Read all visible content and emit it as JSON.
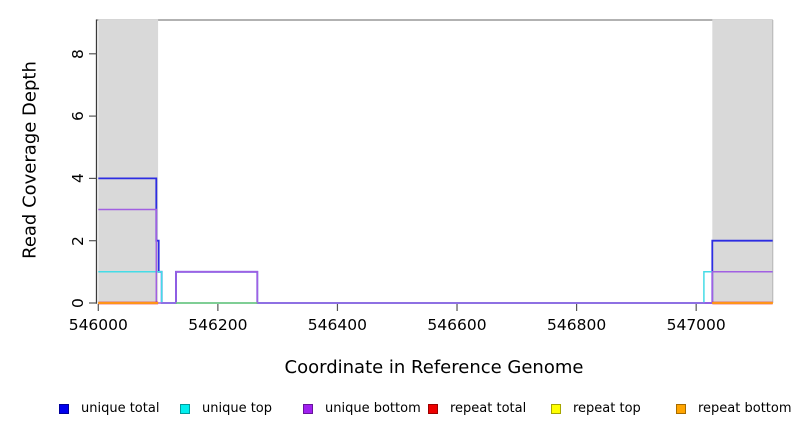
{
  "chart_data": {
    "type": "line",
    "subtype": "step-coverage",
    "title": "",
    "xlabel": "Coordinate in Reference Genome",
    "ylabel": "Read Coverage Depth",
    "xlim": [
      545997,
      547128
    ],
    "ylim": [
      0,
      9.085
    ],
    "x_ticks": [
      546000,
      546200,
      546400,
      546600,
      546800,
      547000
    ],
    "y_ticks": [
      0,
      2,
      4,
      6,
      8
    ],
    "grid": false,
    "region_fill": "#d9d9d9",
    "repeat_regions": [
      {
        "x0": 546000,
        "x1": 546100
      },
      {
        "x0": 547027,
        "x1": 547128
      }
    ],
    "series": [
      {
        "name": "unique total",
        "color": "#2d2de2",
        "width": 1.8,
        "steps": [
          [
            546000,
            4
          ],
          [
            546097,
            2
          ],
          [
            546101,
            1
          ],
          [
            546106,
            0
          ],
          [
            546130,
            1
          ],
          [
            546266,
            0
          ],
          [
            547027,
            2
          ]
        ]
      },
      {
        "name": "unique top",
        "color": "#45dce6",
        "width": 1.5,
        "steps": [
          [
            546000,
            1
          ],
          [
            546106,
            0
          ],
          [
            547013,
            1
          ]
        ]
      },
      {
        "name": "unique bottom",
        "color": "#a160e2",
        "width": 1.5,
        "steps": [
          [
            546000,
            3
          ],
          [
            546097,
            0
          ],
          [
            546130,
            1
          ],
          [
            546266,
            0
          ],
          [
            547027,
            1
          ]
        ]
      },
      {
        "name": "repeat total",
        "color": "#e01010",
        "width": 2.4,
        "regions": [
          [
            546000,
            546100,
            0
          ],
          [
            547027,
            547128,
            0
          ]
        ]
      },
      {
        "name": "repeat top",
        "color": "#ffe400",
        "width": 2.1,
        "regions": [
          [
            546000,
            546100,
            0
          ],
          [
            547027,
            547128,
            0
          ]
        ]
      },
      {
        "name": "repeat bottom",
        "color": "#ff9418",
        "width": 1.9,
        "regions": [
          [
            546000,
            546100,
            0
          ],
          [
            547027,
            547128,
            0
          ]
        ]
      }
    ],
    "baseline_overlap_segments": [
      {
        "x0": 546130,
        "x1": 546266,
        "y": 0,
        "color": "#74c476"
      }
    ],
    "legend": {
      "position": "bottom",
      "items": [
        {
          "label": "unique total",
          "color": "#0000ee"
        },
        {
          "label": "unique top",
          "color": "#00eeee"
        },
        {
          "label": "unique bottom",
          "color": "#a020f0"
        },
        {
          "label": "repeat total",
          "color": "#ee0000"
        },
        {
          "label": "repeat top",
          "color": "#ffff00"
        },
        {
          "label": "repeat bottom",
          "color": "#ffa500"
        }
      ]
    },
    "frame": {
      "top_color": "#999999",
      "right_color": "#bbbbbb",
      "axis_color": "#3a3a3a",
      "tick_color": "#555555"
    }
  }
}
